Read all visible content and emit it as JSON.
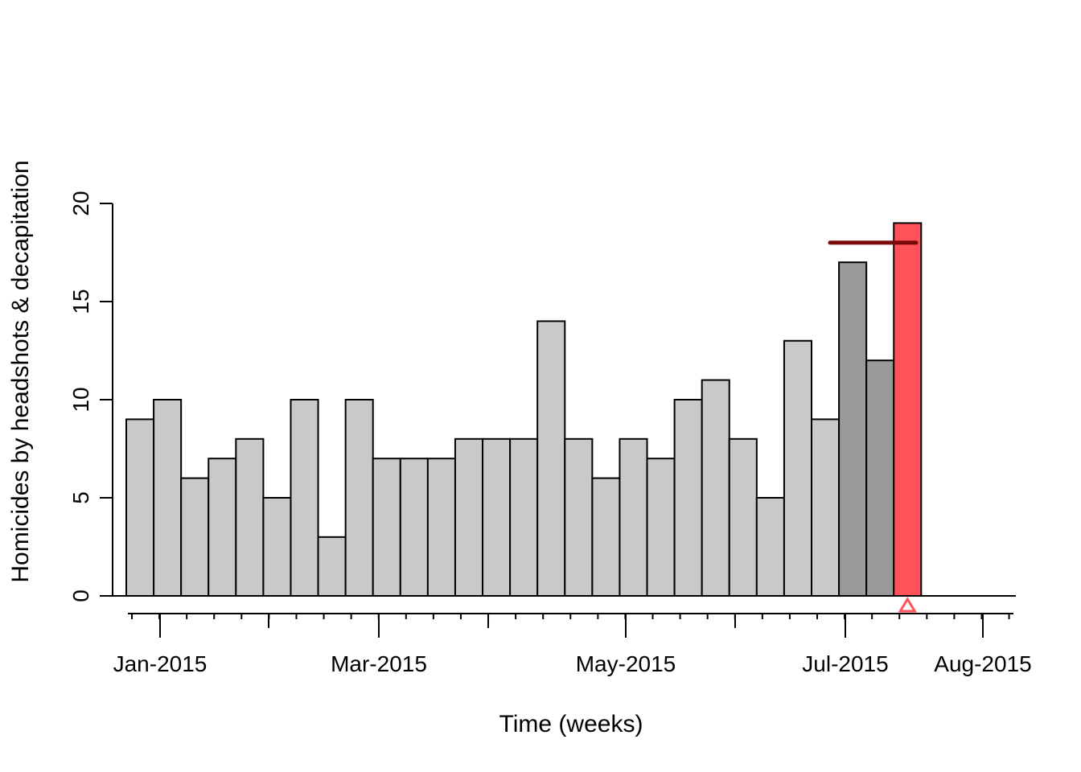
{
  "chart_data": {
    "type": "bar",
    "xlabel": "Time (weeks)",
    "ylabel": "Homicides by headshots & decapitation",
    "ylim": [
      0,
      20
    ],
    "y_ticks": [
      "0",
      "5",
      "10",
      "15",
      "20"
    ],
    "x_tick_labels": [
      "Jan-2015",
      "Mar-2015",
      "May-2015",
      "Jul-2015",
      "Aug-2015"
    ],
    "values": [
      9,
      10,
      6,
      7,
      8,
      5,
      10,
      3,
      10,
      7,
      7,
      7,
      8,
      8,
      8,
      14,
      8,
      6,
      8,
      7,
      10,
      11,
      8,
      5,
      13,
      9,
      17,
      12,
      19,
      0,
      0,
      0
    ],
    "bar_status": [
      "past",
      "past",
      "past",
      "past",
      "past",
      "past",
      "past",
      "past",
      "past",
      "past",
      "past",
      "past",
      "past",
      "past",
      "past",
      "past",
      "past",
      "past",
      "past",
      "past",
      "past",
      "past",
      "past",
      "past",
      "past",
      "past",
      "reference",
      "reference",
      "alarm",
      "empty",
      "empty",
      "empty"
    ],
    "threshold": 18,
    "alarm_week_index": 28,
    "colors": {
      "past": "#c9c9c9",
      "reference": "#999999",
      "alarm": "#ff5259",
      "threshold": "#7a0a0a",
      "alarm_marker": "#ff5259"
    },
    "grid": false
  }
}
